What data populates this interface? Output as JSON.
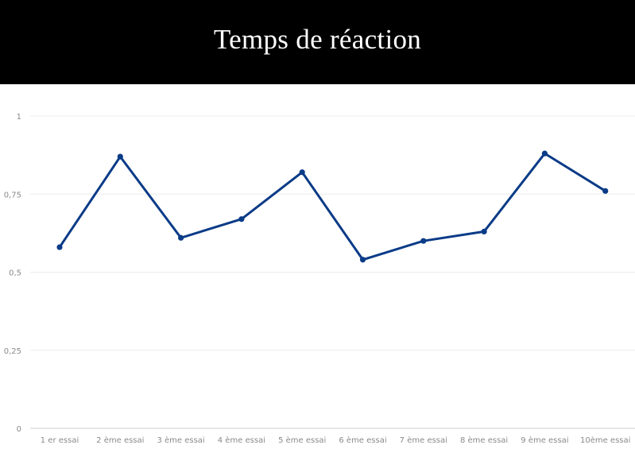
{
  "chart_data": {
    "type": "line",
    "title": "Temps de réaction",
    "categories": [
      "1 er essai",
      "2 ème essai",
      "3 ème essai",
      "4 ème essai",
      "5 ème essai",
      "6 ème essai",
      "7 ème essai",
      "8 ème essai",
      "9 ème essai",
      "10ème essai"
    ],
    "series": [
      {
        "values": [
          0.58,
          0.87,
          0.61,
          0.67,
          0.82,
          0.54,
          0.6,
          0.63,
          0.88,
          0.76
        ]
      }
    ],
    "yticks": [
      0,
      0.25,
      0.5,
      0.75,
      1
    ],
    "ytick_labels": [
      "0",
      "0,25",
      "0,5",
      "0,75",
      "1"
    ],
    "ylim": [
      0,
      1
    ],
    "grid": true,
    "legend": "none",
    "colors": {
      "series": "#0a3b87",
      "header_bg": "#000000",
      "title_text": "#ffffff"
    }
  }
}
